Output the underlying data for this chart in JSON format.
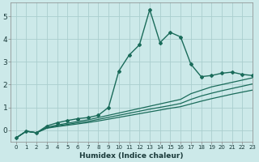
{
  "xlabel": "Humidex (Indice chaleur)",
  "bg_color": "#cce9e9",
  "grid_color": "#aacece",
  "line_color": "#1a6b5a",
  "x_humidex": [
    0,
    1,
    2,
    3,
    4,
    5,
    6,
    7,
    8,
    9,
    10,
    11,
    12,
    13,
    14,
    15,
    16,
    17,
    18,
    19,
    20,
    21,
    22,
    23
  ],
  "curve1": [
    -0.35,
    -0.05,
    -0.12,
    0.18,
    0.32,
    0.42,
    0.5,
    0.55,
    0.65,
    1.0,
    2.6,
    3.3,
    3.75,
    5.3,
    3.85,
    4.3,
    4.1,
    2.9,
    2.35,
    2.4,
    2.5,
    2.55,
    2.45,
    2.4
  ],
  "curve2": [
    -0.35,
    -0.05,
    -0.12,
    0.12,
    0.22,
    0.3,
    0.38,
    0.45,
    0.55,
    0.65,
    0.75,
    0.85,
    0.95,
    1.05,
    1.15,
    1.25,
    1.35,
    1.6,
    1.75,
    1.9,
    2.0,
    2.1,
    2.2,
    2.3
  ],
  "curve3": [
    -0.35,
    -0.05,
    -0.12,
    0.1,
    0.18,
    0.25,
    0.32,
    0.38,
    0.47,
    0.56,
    0.65,
    0.74,
    0.83,
    0.92,
    1.0,
    1.08,
    1.17,
    1.35,
    1.5,
    1.62,
    1.73,
    1.83,
    1.93,
    2.03
  ],
  "curve4": [
    -0.35,
    -0.05,
    -0.12,
    0.08,
    0.15,
    0.21,
    0.27,
    0.33,
    0.4,
    0.48,
    0.56,
    0.64,
    0.72,
    0.8,
    0.88,
    0.96,
    1.03,
    1.15,
    1.27,
    1.38,
    1.48,
    1.58,
    1.67,
    1.76
  ],
  "ylim": [
    -0.5,
    5.6
  ],
  "xlim": [
    -0.5,
    23
  ],
  "yticks": [
    0,
    1,
    2,
    3,
    4,
    5
  ],
  "xticks": [
    0,
    1,
    2,
    3,
    4,
    5,
    6,
    7,
    8,
    9,
    10,
    11,
    12,
    13,
    14,
    15,
    16,
    17,
    18,
    19,
    20,
    21,
    22,
    23
  ]
}
